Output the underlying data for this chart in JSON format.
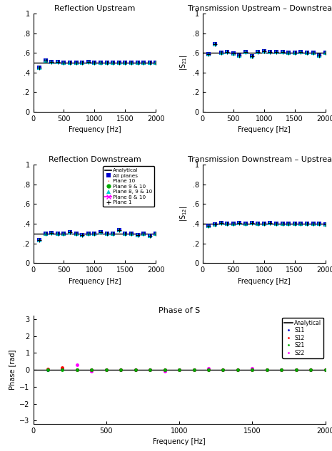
{
  "fig_width": 4.65,
  "fig_height": 6.33,
  "dpi": 100,
  "freq": [
    100,
    200,
    300,
    400,
    500,
    600,
    700,
    800,
    900,
    1000,
    1100,
    1200,
    1300,
    1400,
    1500,
    1600,
    1700,
    1800,
    1900,
    2000
  ],
  "S11_analytical": 0.5,
  "S21_analytical": 0.6,
  "S22_analytical": 0.3,
  "S12_analytical": 0.4,
  "S11_data": [
    0.45,
    0.52,
    0.51,
    0.505,
    0.5,
    0.5,
    0.5,
    0.5,
    0.505,
    0.5,
    0.5,
    0.5,
    0.5,
    0.5,
    0.5,
    0.5,
    0.5,
    0.5,
    0.5,
    0.5
  ],
  "S21_data": [
    0.585,
    0.69,
    0.6,
    0.61,
    0.595,
    0.57,
    0.608,
    0.562,
    0.61,
    0.615,
    0.608,
    0.608,
    0.61,
    0.6,
    0.604,
    0.61,
    0.6,
    0.598,
    0.572,
    0.6
  ],
  "S22_data": [
    0.23,
    0.295,
    0.305,
    0.3,
    0.295,
    0.315,
    0.3,
    0.285,
    0.295,
    0.3,
    0.315,
    0.3,
    0.3,
    0.335,
    0.295,
    0.3,
    0.285,
    0.3,
    0.275,
    0.295
  ],
  "S12_data": [
    0.38,
    0.395,
    0.405,
    0.4,
    0.4,
    0.405,
    0.4,
    0.405,
    0.4,
    0.4,
    0.405,
    0.4,
    0.4,
    0.4,
    0.4,
    0.4,
    0.4,
    0.4,
    0.4,
    0.395
  ],
  "phase_S11": [
    0.02,
    0.05,
    0.0,
    0.0,
    0.0,
    0.0,
    0.0,
    0.0,
    0.0,
    0.0,
    0.0,
    0.0,
    0.0,
    0.0,
    0.0,
    0.0,
    0.0,
    0.0,
    0.0,
    0.0
  ],
  "phase_S12": [
    0.05,
    0.12,
    0.0,
    0.0,
    0.0,
    0.0,
    0.0,
    0.0,
    0.0,
    0.0,
    0.0,
    0.0,
    0.0,
    0.0,
    0.0,
    0.0,
    0.0,
    0.0,
    0.0,
    0.0
  ],
  "phase_S21": [
    0.0,
    0.02,
    0.0,
    0.0,
    0.0,
    0.0,
    0.0,
    0.0,
    0.0,
    0.0,
    0.0,
    0.0,
    0.0,
    0.0,
    0.0,
    0.0,
    0.0,
    0.0,
    0.0,
    0.0
  ],
  "phase_S22": [
    0.02,
    0.05,
    0.3,
    -0.08,
    0.0,
    0.0,
    0.0,
    0.0,
    -0.06,
    0.0,
    0.0,
    0.1,
    0.0,
    0.0,
    0.1,
    0.0,
    0.0,
    0.0,
    0.0,
    0.0
  ],
  "color_blue": "#0000CD",
  "color_red": "#FF0000",
  "color_green": "#00AA00",
  "color_cyan": "#00CCCC",
  "color_magenta": "#FF00FF",
  "title_S11": "Reflection Upstream",
  "title_S21": "Transmission Upstream – Downstream",
  "title_S22": "Reflection Downstream",
  "title_S12": "Transmission Downstream – Upstream",
  "title_phase": "Phase of S",
  "ylabel_S21": "|S$_{21}$|",
  "ylabel_S12": "|S$_{12}$|",
  "ylabel_phase": "Phase [rad]",
  "xlabel_freq": "Frequency [Hz]",
  "xlim": [
    0,
    2000
  ],
  "ylim_S11": [
    0,
    1
  ],
  "ylim_S21": [
    0,
    1
  ],
  "ylim_S22": [
    0,
    1
  ],
  "ylim_S12": [
    0,
    1
  ],
  "ylim_phase": [
    -3.2,
    3.2
  ],
  "yticks_mag": [
    0,
    0.2,
    0.4,
    0.6,
    0.8,
    1.0
  ],
  "ytick_labels_mag": [
    "0",
    ".2",
    ".4",
    ".6",
    ".8",
    "1"
  ],
  "yticks_phase": [
    -3,
    -2,
    -1,
    0,
    1,
    2,
    3
  ],
  "font_size": 7,
  "title_font_size": 8,
  "tick_font_size": 7
}
